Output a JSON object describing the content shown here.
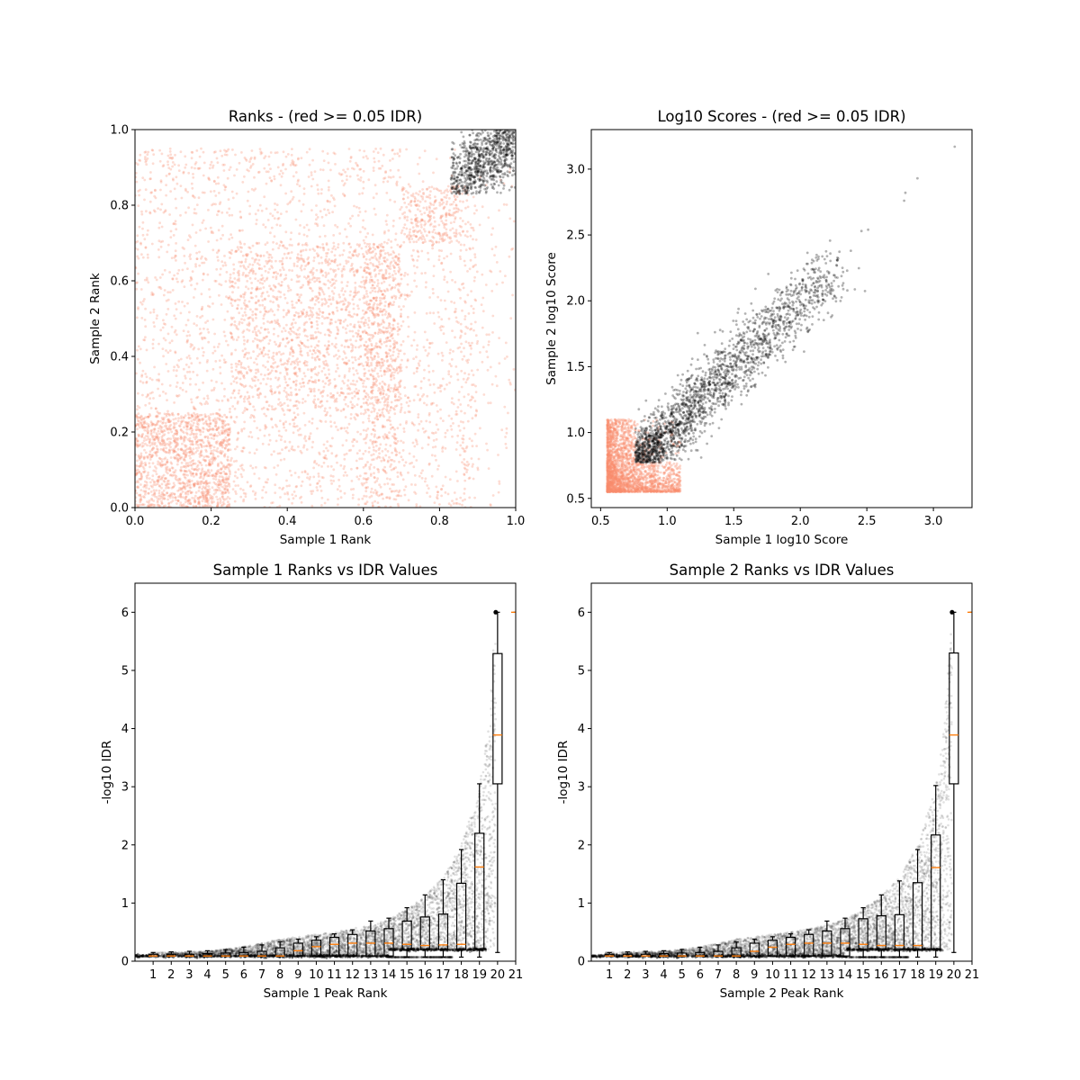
{
  "colors": {
    "above_threshold": "#000000",
    "below_threshold": "#fa8c6e",
    "median": "#ff7f0e"
  },
  "chart_data": [
    {
      "type": "scatter",
      "title": "Ranks - (red >= 0.05 IDR)",
      "xlabel": "Sample 1 Rank",
      "ylabel": "Sample 2 Rank",
      "xlim": [
        0,
        1
      ],
      "ylim": [
        0,
        1
      ],
      "xticks": [
        "0.0",
        "0.2",
        "0.4",
        "0.6",
        "0.8",
        "1.0"
      ],
      "yticks": [
        "0.0",
        "0.2",
        "0.4",
        "0.6",
        "0.8",
        "1.0"
      ],
      "grid": false,
      "point_clouds": [
        {
          "color": "red",
          "x_range": [
            0,
            0.25
          ],
          "y_range": [
            0,
            0.25
          ],
          "density": "high"
        },
        {
          "color": "red",
          "x_range": [
            0.25,
            0.7
          ],
          "y_range": [
            0.25,
            0.7
          ],
          "density": "high"
        },
        {
          "color": "red",
          "x_range": [
            0.7,
            0.85
          ],
          "y_range": [
            0.7,
            0.85
          ],
          "density": "medium"
        },
        {
          "color": "red",
          "x_range": [
            0,
            1
          ],
          "y_range": [
            0,
            0.95
          ],
          "density": "low"
        },
        {
          "color": "black",
          "x_range": [
            0.83,
            1
          ],
          "y_range": [
            0.83,
            1
          ],
          "density": "high"
        }
      ]
    },
    {
      "type": "scatter",
      "title": "Log10 Scores - (red >= 0.05 IDR)",
      "xlabel": "Sample 1 log10 Score",
      "ylabel": "Sample 2 log10 Score",
      "xlim": [
        0.43,
        3.29
      ],
      "ylim": [
        0.43,
        3.3
      ],
      "xticks": [
        "0.5",
        "1.0",
        "1.5",
        "2.0",
        "2.5",
        "3.0"
      ],
      "yticks": [
        "0.5",
        "1.0",
        "1.5",
        "2.0",
        "2.5",
        "3.0"
      ],
      "grid": false,
      "point_clouds": [
        {
          "color": "red",
          "x_range": [
            0.55,
            1.3
          ],
          "y_range": [
            0.55,
            1.3
          ]
        },
        {
          "color": "black",
          "x_range": [
            0.76,
            3.16
          ],
          "y_range": [
            0.77,
            3.17
          ],
          "trend": "y ≈ x"
        }
      ]
    },
    {
      "type": "boxplot",
      "title": "Sample 1 Ranks vs IDR Values",
      "xlabel": "Sample 1 Peak Rank",
      "ylabel": "-log10 IDR",
      "xlim": [
        0,
        21
      ],
      "ylim": [
        0,
        6.5
      ],
      "xticks": [
        "1",
        "2",
        "3",
        "4",
        "5",
        "6",
        "7",
        "8",
        "9",
        "10",
        "11",
        "12",
        "13",
        "14",
        "15",
        "16",
        "17",
        "18",
        "19",
        "20",
        "21"
      ],
      "yticks": [
        "0",
        "1",
        "2",
        "3",
        "4",
        "5",
        "6"
      ],
      "boxes": [
        {
          "pos": 1,
          "low": 0.09,
          "q1": 0.09,
          "median": 0.09,
          "q3": 0.12,
          "high": 0.15
        },
        {
          "pos": 2,
          "low": 0.09,
          "q1": 0.09,
          "median": 0.09,
          "q3": 0.12,
          "high": 0.16
        },
        {
          "pos": 3,
          "low": 0.09,
          "q1": 0.09,
          "median": 0.09,
          "q3": 0.12,
          "high": 0.17
        },
        {
          "pos": 4,
          "low": 0.09,
          "q1": 0.09,
          "median": 0.09,
          "q3": 0.13,
          "high": 0.18
        },
        {
          "pos": 5,
          "low": 0.09,
          "q1": 0.09,
          "median": 0.09,
          "q3": 0.14,
          "high": 0.2
        },
        {
          "pos": 6,
          "low": 0.09,
          "q1": 0.09,
          "median": 0.09,
          "q3": 0.15,
          "high": 0.24
        },
        {
          "pos": 7,
          "low": 0.09,
          "q1": 0.09,
          "median": 0.09,
          "q3": 0.17,
          "high": 0.28
        },
        {
          "pos": 8,
          "low": 0.09,
          "q1": 0.09,
          "median": 0.09,
          "q3": 0.23,
          "high": 0.33
        },
        {
          "pos": 9,
          "low": 0.09,
          "q1": 0.09,
          "median": 0.18,
          "q3": 0.31,
          "high": 0.38
        },
        {
          "pos": 10,
          "low": 0.09,
          "q1": 0.09,
          "median": 0.25,
          "q3": 0.36,
          "high": 0.42
        },
        {
          "pos": 11,
          "low": 0.09,
          "q1": 0.09,
          "median": 0.29,
          "q3": 0.41,
          "high": 0.47
        },
        {
          "pos": 12,
          "low": 0.09,
          "q1": 0.09,
          "median": 0.31,
          "q3": 0.46,
          "high": 0.54
        },
        {
          "pos": 13,
          "low": 0.09,
          "q1": 0.09,
          "median": 0.31,
          "q3": 0.52,
          "high": 0.69
        },
        {
          "pos": 14,
          "low": 0.07,
          "q1": 0.09,
          "median": 0.31,
          "q3": 0.56,
          "high": 0.74
        },
        {
          "pos": 15,
          "low": 0.07,
          "q1": 0.2,
          "median": 0.29,
          "q3": 0.69,
          "high": 0.92
        },
        {
          "pos": 16,
          "low": 0.07,
          "q1": 0.2,
          "median": 0.27,
          "q3": 0.76,
          "high": 1.14
        },
        {
          "pos": 17,
          "low": 0.07,
          "q1": 0.2,
          "median": 0.28,
          "q3": 0.81,
          "high": 1.4
        },
        {
          "pos": 18,
          "low": 0.07,
          "q1": 0.2,
          "median": 0.29,
          "q3": 1.34,
          "high": 1.92
        },
        {
          "pos": 19,
          "low": 0.07,
          "q1": 0.21,
          "median": 1.62,
          "q3": 2.2,
          "high": 3.05
        },
        {
          "pos": 20,
          "low": 0.15,
          "q1": 3.05,
          "median": 3.89,
          "q3": 5.29,
          "high": 6.0
        },
        {
          "pos": 21,
          "low": 6.0,
          "q1": 6.0,
          "median": 6.0,
          "q3": 6.0,
          "high": 6.0
        }
      ],
      "scatter_upper_envelope": [
        [
          0.7,
          0.15
        ],
        [
          4,
          0.17
        ],
        [
          6,
          0.25
        ],
        [
          8,
          0.38
        ],
        [
          11,
          0.5
        ],
        [
          13,
          0.62
        ],
        [
          14,
          0.72
        ],
        [
          15,
          0.9
        ],
        [
          16,
          1.12
        ],
        [
          17,
          1.45
        ],
        [
          18,
          2.0
        ],
        [
          19,
          3.0
        ],
        [
          19.5,
          4.2
        ],
        [
          19.9,
          6.0
        ]
      ]
    },
    {
      "type": "boxplot",
      "title": "Sample 2 Ranks vs IDR Values",
      "xlabel": "Sample 2 Peak Rank",
      "ylabel": "-log10 IDR",
      "xlim": [
        0,
        21
      ],
      "ylim": [
        0,
        6.5
      ],
      "xticks": [
        "1",
        "2",
        "3",
        "4",
        "5",
        "6",
        "7",
        "8",
        "9",
        "10",
        "11",
        "12",
        "13",
        "14",
        "15",
        "16",
        "17",
        "18",
        "19",
        "20",
        "21"
      ],
      "yticks": [
        "0",
        "1",
        "2",
        "3",
        "4",
        "5",
        "6"
      ],
      "boxes": [
        {
          "pos": 1,
          "low": 0.09,
          "q1": 0.09,
          "median": 0.09,
          "q3": 0.12,
          "high": 0.15
        },
        {
          "pos": 2,
          "low": 0.09,
          "q1": 0.09,
          "median": 0.09,
          "q3": 0.12,
          "high": 0.16
        },
        {
          "pos": 3,
          "low": 0.09,
          "q1": 0.09,
          "median": 0.09,
          "q3": 0.12,
          "high": 0.17
        },
        {
          "pos": 4,
          "low": 0.09,
          "q1": 0.09,
          "median": 0.09,
          "q3": 0.13,
          "high": 0.18
        },
        {
          "pos": 5,
          "low": 0.09,
          "q1": 0.09,
          "median": 0.09,
          "q3": 0.14,
          "high": 0.2
        },
        {
          "pos": 6,
          "low": 0.09,
          "q1": 0.09,
          "median": 0.09,
          "q3": 0.15,
          "high": 0.24
        },
        {
          "pos": 7,
          "low": 0.09,
          "q1": 0.09,
          "median": 0.09,
          "q3": 0.17,
          "high": 0.28
        },
        {
          "pos": 8,
          "low": 0.09,
          "q1": 0.09,
          "median": 0.09,
          "q3": 0.23,
          "high": 0.33
        },
        {
          "pos": 9,
          "low": 0.09,
          "q1": 0.09,
          "median": 0.17,
          "q3": 0.31,
          "high": 0.38
        },
        {
          "pos": 10,
          "low": 0.09,
          "q1": 0.09,
          "median": 0.24,
          "q3": 0.36,
          "high": 0.42
        },
        {
          "pos": 11,
          "low": 0.09,
          "q1": 0.09,
          "median": 0.29,
          "q3": 0.41,
          "high": 0.47
        },
        {
          "pos": 12,
          "low": 0.09,
          "q1": 0.09,
          "median": 0.31,
          "q3": 0.46,
          "high": 0.54
        },
        {
          "pos": 13,
          "low": 0.09,
          "q1": 0.09,
          "median": 0.31,
          "q3": 0.52,
          "high": 0.69
        },
        {
          "pos": 14,
          "low": 0.07,
          "q1": 0.09,
          "median": 0.31,
          "q3": 0.56,
          "high": 0.74
        },
        {
          "pos": 15,
          "low": 0.07,
          "q1": 0.2,
          "median": 0.29,
          "q3": 0.73,
          "high": 0.92
        },
        {
          "pos": 16,
          "low": 0.07,
          "q1": 0.2,
          "median": 0.27,
          "q3": 0.78,
          "high": 1.14
        },
        {
          "pos": 17,
          "low": 0.07,
          "q1": 0.2,
          "median": 0.27,
          "q3": 0.8,
          "high": 1.38
        },
        {
          "pos": 18,
          "low": 0.07,
          "q1": 0.2,
          "median": 0.27,
          "q3": 1.35,
          "high": 1.92
        },
        {
          "pos": 19,
          "low": 0.07,
          "q1": 0.21,
          "median": 1.61,
          "q3": 2.17,
          "high": 3.02
        },
        {
          "pos": 20,
          "low": 0.15,
          "q1": 3.05,
          "median": 3.89,
          "q3": 5.3,
          "high": 6.0
        },
        {
          "pos": 21,
          "low": 6.0,
          "q1": 6.0,
          "median": 6.0,
          "q3": 6.0,
          "high": 6.0
        }
      ],
      "scatter_upper_envelope": [
        [
          0.7,
          0.15
        ],
        [
          4,
          0.17
        ],
        [
          6,
          0.25
        ],
        [
          8,
          0.38
        ],
        [
          11,
          0.5
        ],
        [
          13,
          0.62
        ],
        [
          14,
          0.72
        ],
        [
          15,
          0.9
        ],
        [
          16,
          1.12
        ],
        [
          17,
          1.45
        ],
        [
          18,
          2.0
        ],
        [
          19,
          3.0
        ],
        [
          19.5,
          4.2
        ],
        [
          19.9,
          6.0
        ]
      ]
    }
  ]
}
